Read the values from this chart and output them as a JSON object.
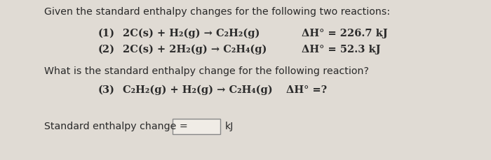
{
  "bg_color": "#e0dbd4",
  "title_text": "Given the standard enthalpy changes for the following two reactions:",
  "reaction1_label": "(1)",
  "reaction1_eq": "2C(s) + H₂(g) → C₂H₂(g)",
  "reaction1_dH": "ΔH° = 226.7 kJ",
  "reaction2_label": "(2)",
  "reaction2_eq": "2C(s) + 2H₂(g) → C₂H₄(g)",
  "reaction2_dH": "ΔH° = 52.3 kJ",
  "question_text": "What is the standard enthalpy change for the following reaction?",
  "reaction3_label": "(3)",
  "reaction3_eq": "C₂H₂(g) + H₂(g) → C₂H₄(g)",
  "reaction3_dH": "ΔH° =?",
  "answer_label": "Standard enthalpy change =",
  "answer_unit": "kJ",
  "text_color": "#2a2a2a",
  "box_color": "#f0ece6",
  "box_edge_color": "#888888",
  "fig_width": 7.0,
  "fig_height": 2.29,
  "dpi": 100
}
